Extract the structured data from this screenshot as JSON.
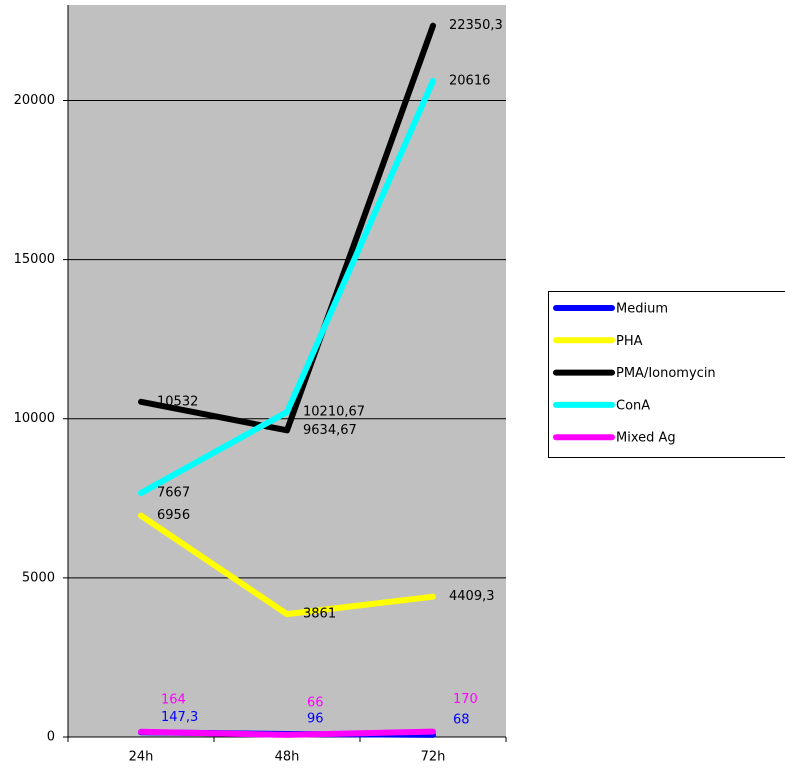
{
  "chart_data": {
    "type": "line",
    "categories": [
      "24h",
      "48h",
      "72h"
    ],
    "series": [
      {
        "name": "Medium",
        "color": "#0000ff",
        "values": [
          147.3,
          96,
          68
        ],
        "value_labels": [
          "147,3",
          "96",
          "68"
        ]
      },
      {
        "name": "PHA",
        "color": "#ffff00",
        "values": [
          6956,
          3861,
          4409.3
        ],
        "value_labels": [
          "6956",
          "3861",
          "4409,3"
        ]
      },
      {
        "name": "PMA/Ionomycin",
        "color": "#000000",
        "values": [
          10532,
          9634.67,
          22350.3
        ],
        "value_labels": [
          "10532",
          "9634,67",
          "22350,3"
        ]
      },
      {
        "name": "ConA",
        "color": "#00ffff",
        "values": [
          7667,
          10210.67,
          20616
        ],
        "value_labels": [
          "7667",
          "10210,67",
          "20616"
        ]
      },
      {
        "name": "Mixed Ag",
        "color": "#ff00ff",
        "values": [
          164,
          66,
          170
        ],
        "value_labels": [
          "164",
          "66",
          "170"
        ]
      }
    ],
    "ylim": [
      0,
      23000
    ],
    "yticks": [
      0,
      5000,
      10000,
      15000,
      20000
    ],
    "grid": true,
    "legend": "right"
  }
}
